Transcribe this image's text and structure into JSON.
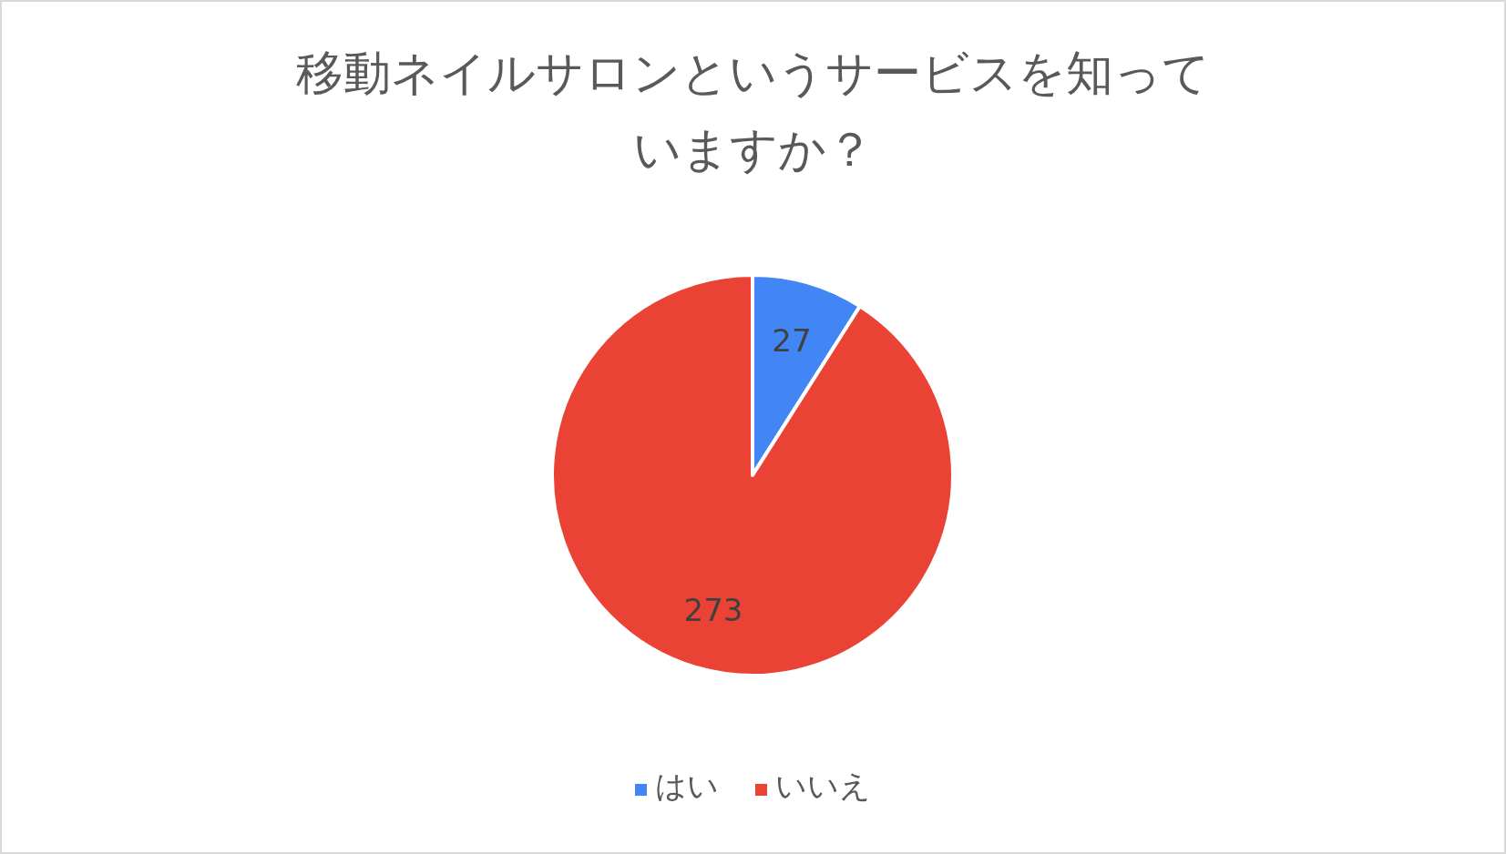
{
  "chart_data": {
    "type": "pie",
    "title": "移動ネイルサロンというサービスを知っていますか？",
    "categories": [
      "はい",
      "いいえ"
    ],
    "values": [
      27,
      273
    ],
    "colors": [
      "#4285f4",
      "#ea4335"
    ],
    "data_labels": true,
    "legend": "bottom"
  }
}
